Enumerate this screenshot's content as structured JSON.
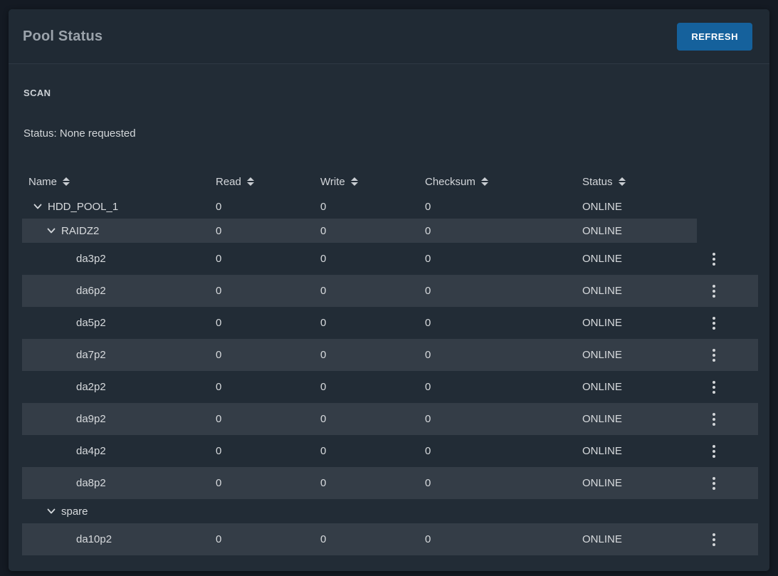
{
  "colors": {
    "page_background": "#141a23",
    "card_background": "#222c36",
    "stripe_background": "#343d47",
    "accent_blue": "#15619c",
    "text": "#d7dadd"
  },
  "card": {
    "title": "Pool Status",
    "refresh_label": "REFRESH"
  },
  "scan": {
    "heading": "SCAN",
    "status_text": "Status: None requested"
  },
  "table": {
    "columns": [
      "Name",
      "Read",
      "Write",
      "Checksum",
      "Status"
    ],
    "rows": [
      {
        "name": "HDD_POOL_1",
        "level": 0,
        "kind": "group",
        "expanded": true,
        "read": "0",
        "write": "0",
        "checksum": "0",
        "status": "ONLINE",
        "has_menu": false,
        "striped": false
      },
      {
        "name": "RAIDZ2",
        "level": 1,
        "kind": "group",
        "expanded": true,
        "read": "0",
        "write": "0",
        "checksum": "0",
        "status": "ONLINE",
        "has_menu": false,
        "striped": true
      },
      {
        "name": "da3p2",
        "level": 2,
        "kind": "disk",
        "read": "0",
        "write": "0",
        "checksum": "0",
        "status": "ONLINE",
        "has_menu": true,
        "striped": false
      },
      {
        "name": "da6p2",
        "level": 2,
        "kind": "disk",
        "read": "0",
        "write": "0",
        "checksum": "0",
        "status": "ONLINE",
        "has_menu": true,
        "striped": true
      },
      {
        "name": "da5p2",
        "level": 2,
        "kind": "disk",
        "read": "0",
        "write": "0",
        "checksum": "0",
        "status": "ONLINE",
        "has_menu": true,
        "striped": false
      },
      {
        "name": "da7p2",
        "level": 2,
        "kind": "disk",
        "read": "0",
        "write": "0",
        "checksum": "0",
        "status": "ONLINE",
        "has_menu": true,
        "striped": true
      },
      {
        "name": "da2p2",
        "level": 2,
        "kind": "disk",
        "read": "0",
        "write": "0",
        "checksum": "0",
        "status": "ONLINE",
        "has_menu": true,
        "striped": false
      },
      {
        "name": "da9p2",
        "level": 2,
        "kind": "disk",
        "read": "0",
        "write": "0",
        "checksum": "0",
        "status": "ONLINE",
        "has_menu": true,
        "striped": true
      },
      {
        "name": "da4p2",
        "level": 2,
        "kind": "disk",
        "read": "0",
        "write": "0",
        "checksum": "0",
        "status": "ONLINE",
        "has_menu": true,
        "striped": false
      },
      {
        "name": "da8p2",
        "level": 2,
        "kind": "disk",
        "read": "0",
        "write": "0",
        "checksum": "0",
        "status": "ONLINE",
        "has_menu": true,
        "striped": true
      },
      {
        "name": "spare",
        "level": 1,
        "kind": "group",
        "expanded": true,
        "read": "",
        "write": "",
        "checksum": "",
        "status": "",
        "has_menu": false,
        "striped": false
      },
      {
        "name": "da10p2",
        "level": 2,
        "kind": "disk",
        "read": "0",
        "write": "0",
        "checksum": "0",
        "status": "ONLINE",
        "has_menu": true,
        "striped": true
      }
    ]
  }
}
